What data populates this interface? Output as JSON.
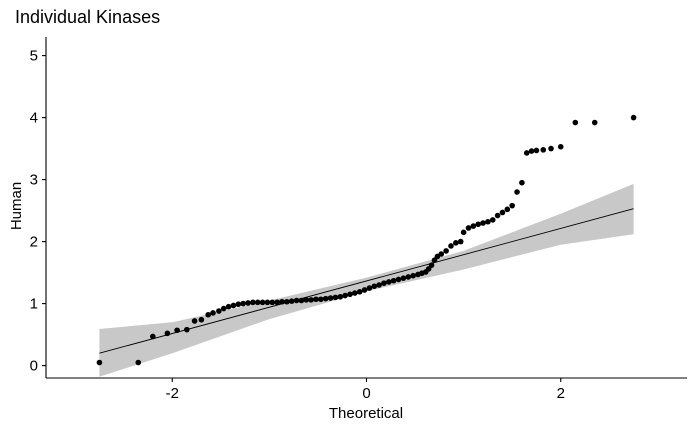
{
  "chart_data": {
    "type": "scatter",
    "title": "Individual Kinases",
    "xlabel": "Theoretical",
    "ylabel": "Human",
    "xlim": [
      -3.3,
      3.3
    ],
    "ylim": [
      -0.2,
      5.3
    ],
    "x_ticks": [
      -2,
      0,
      2
    ],
    "y_ticks": [
      0,
      1,
      2,
      3,
      4,
      5
    ],
    "x_tick_labels": [
      "-2",
      "0",
      "2"
    ],
    "y_tick_labels": [
      "0",
      "1",
      "2",
      "3",
      "4",
      "5"
    ],
    "grid": false,
    "legend": "none",
    "colors": {
      "points": "#000000",
      "line": "#000000",
      "band": "#c8c8c8"
    },
    "reference_line": {
      "x": [
        -2.75,
        2.75
      ],
      "y": [
        0.2,
        2.53
      ]
    },
    "confidence_band": {
      "x": [
        -2.75,
        -2.0,
        -1.0,
        0.0,
        1.0,
        2.0,
        2.75
      ],
      "upper": [
        0.59,
        0.7,
        1.05,
        1.42,
        1.85,
        2.45,
        2.93
      ],
      "lower": [
        -0.18,
        0.2,
        0.75,
        1.2,
        1.55,
        1.95,
        2.12
      ]
    },
    "points": [
      {
        "x": -2.75,
        "y": 0.05
      },
      {
        "x": -2.35,
        "y": 0.05
      },
      {
        "x": -2.2,
        "y": 0.47
      },
      {
        "x": -2.05,
        "y": 0.52
      },
      {
        "x": -1.95,
        "y": 0.57
      },
      {
        "x": -1.85,
        "y": 0.58
      },
      {
        "x": -1.77,
        "y": 0.72
      },
      {
        "x": -1.7,
        "y": 0.74
      },
      {
        "x": -1.63,
        "y": 0.82
      },
      {
        "x": -1.58,
        "y": 0.85
      },
      {
        "x": -1.52,
        "y": 0.88
      },
      {
        "x": -1.47,
        "y": 0.92
      },
      {
        "x": -1.42,
        "y": 0.95
      },
      {
        "x": -1.37,
        "y": 0.97
      },
      {
        "x": -1.32,
        "y": 0.99
      },
      {
        "x": -1.27,
        "y": 1.0
      },
      {
        "x": -1.22,
        "y": 1.01
      },
      {
        "x": -1.17,
        "y": 1.02
      },
      {
        "x": -1.12,
        "y": 1.02
      },
      {
        "x": -1.07,
        "y": 1.02
      },
      {
        "x": -1.02,
        "y": 1.02
      },
      {
        "x": -0.97,
        "y": 1.02
      },
      {
        "x": -0.92,
        "y": 1.02
      },
      {
        "x": -0.87,
        "y": 1.03
      },
      {
        "x": -0.82,
        "y": 1.03
      },
      {
        "x": -0.77,
        "y": 1.04
      },
      {
        "x": -0.72,
        "y": 1.05
      },
      {
        "x": -0.67,
        "y": 1.05
      },
      {
        "x": -0.62,
        "y": 1.06
      },
      {
        "x": -0.57,
        "y": 1.06
      },
      {
        "x": -0.52,
        "y": 1.07
      },
      {
        "x": -0.47,
        "y": 1.07
      },
      {
        "x": -0.42,
        "y": 1.08
      },
      {
        "x": -0.37,
        "y": 1.09
      },
      {
        "x": -0.32,
        "y": 1.1
      },
      {
        "x": -0.27,
        "y": 1.11
      },
      {
        "x": -0.22,
        "y": 1.13
      },
      {
        "x": -0.17,
        "y": 1.15
      },
      {
        "x": -0.12,
        "y": 1.17
      },
      {
        "x": -0.07,
        "y": 1.19
      },
      {
        "x": -0.02,
        "y": 1.22
      },
      {
        "x": 0.03,
        "y": 1.25
      },
      {
        "x": 0.08,
        "y": 1.28
      },
      {
        "x": 0.13,
        "y": 1.3
      },
      {
        "x": 0.18,
        "y": 1.33
      },
      {
        "x": 0.23,
        "y": 1.35
      },
      {
        "x": 0.28,
        "y": 1.37
      },
      {
        "x": 0.33,
        "y": 1.39
      },
      {
        "x": 0.38,
        "y": 1.41
      },
      {
        "x": 0.43,
        "y": 1.43
      },
      {
        "x": 0.48,
        "y": 1.45
      },
      {
        "x": 0.53,
        "y": 1.47
      },
      {
        "x": 0.57,
        "y": 1.49
      },
      {
        "x": 0.61,
        "y": 1.51
      },
      {
        "x": 0.64,
        "y": 1.56
      },
      {
        "x": 0.67,
        "y": 1.62
      },
      {
        "x": 0.7,
        "y": 1.7
      },
      {
        "x": 0.73,
        "y": 1.76
      },
      {
        "x": 0.77,
        "y": 1.8
      },
      {
        "x": 0.82,
        "y": 1.85
      },
      {
        "x": 0.87,
        "y": 1.93
      },
      {
        "x": 0.92,
        "y": 1.98
      },
      {
        "x": 0.97,
        "y": 2.0
      },
      {
        "x": 1.0,
        "y": 2.15
      },
      {
        "x": 1.05,
        "y": 2.22
      },
      {
        "x": 1.1,
        "y": 2.25
      },
      {
        "x": 1.15,
        "y": 2.28
      },
      {
        "x": 1.2,
        "y": 2.3
      },
      {
        "x": 1.25,
        "y": 2.32
      },
      {
        "x": 1.3,
        "y": 2.35
      },
      {
        "x": 1.35,
        "y": 2.42
      },
      {
        "x": 1.4,
        "y": 2.47
      },
      {
        "x": 1.45,
        "y": 2.52
      },
      {
        "x": 1.5,
        "y": 2.58
      },
      {
        "x": 1.55,
        "y": 2.8
      },
      {
        "x": 1.6,
        "y": 2.95
      },
      {
        "x": 1.65,
        "y": 3.43
      },
      {
        "x": 1.7,
        "y": 3.46
      },
      {
        "x": 1.75,
        "y": 3.47
      },
      {
        "x": 1.82,
        "y": 3.48
      },
      {
        "x": 1.9,
        "y": 3.5
      },
      {
        "x": 2.0,
        "y": 3.53
      },
      {
        "x": 2.15,
        "y": 3.92
      },
      {
        "x": 2.35,
        "y": 3.92
      },
      {
        "x": 2.75,
        "y": 4.0
      }
    ]
  }
}
